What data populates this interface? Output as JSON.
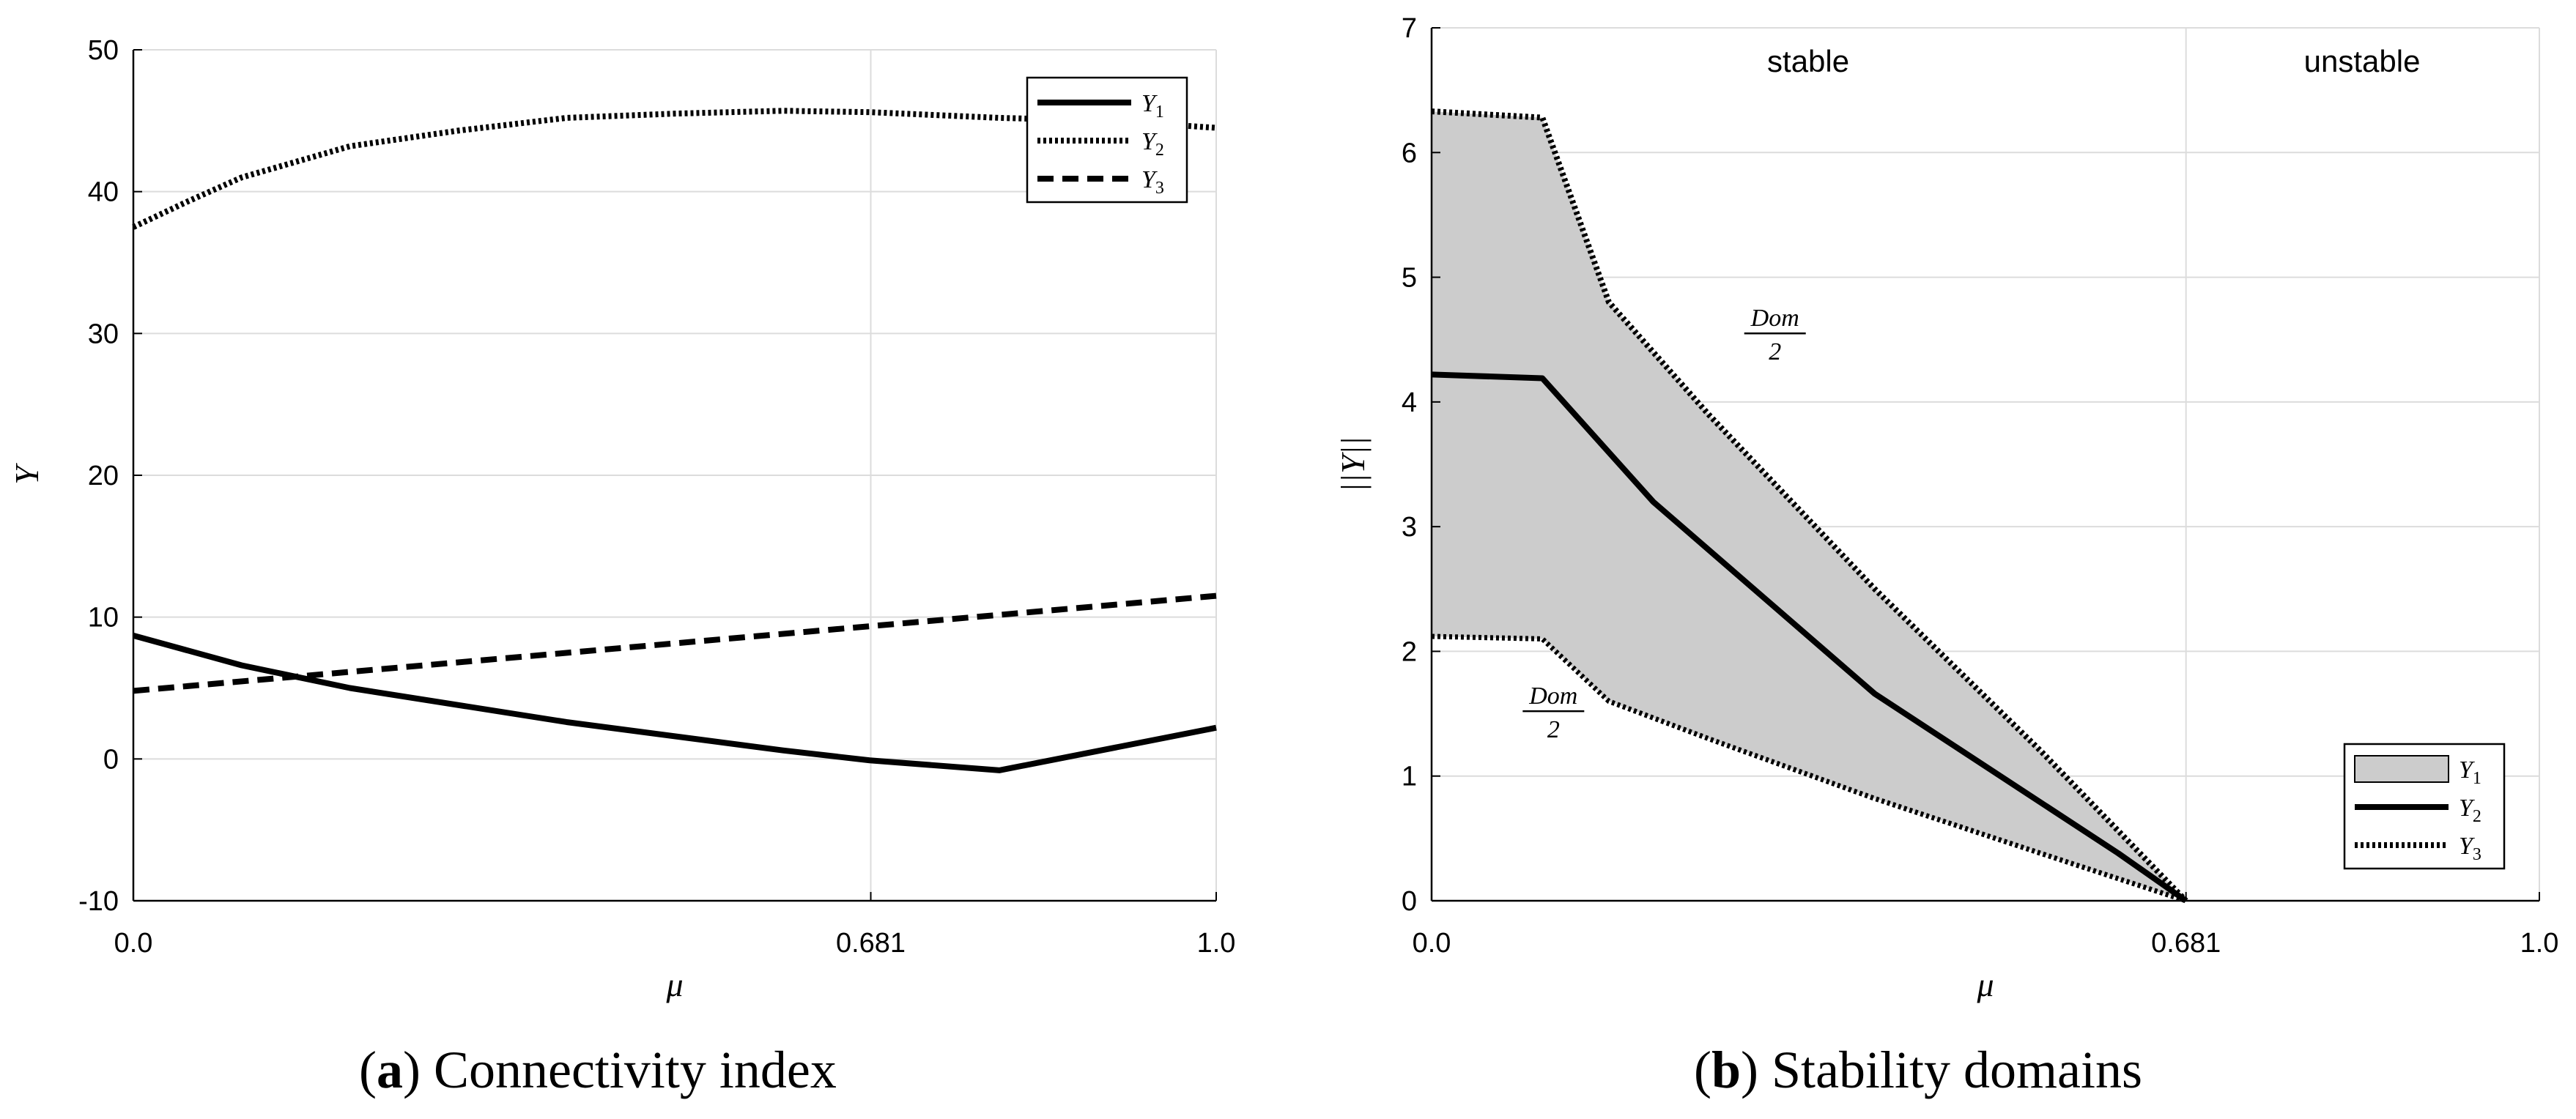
{
  "chart_data": [
    {
      "id": "a",
      "type": "line",
      "caption_letter": "a",
      "caption_text": "Connectivity index",
      "xlabel": "μ",
      "ylabel": "Y",
      "xlim": [
        0,
        1
      ],
      "ylim": [
        -10,
        50
      ],
      "xticks": [
        0,
        0.681,
        1
      ],
      "xtick_labels": [
        "0.0",
        "0.681",
        "1.0"
      ],
      "yticks": [
        -10,
        0,
        10,
        20,
        30,
        40,
        50
      ],
      "ytick_labels": [
        "-10",
        "0",
        "10",
        "20",
        "30",
        "40",
        "50"
      ],
      "grid": true,
      "legend_position": "top-right",
      "series": [
        {
          "name": "Y",
          "sub": "1",
          "style": "solid",
          "x": [
            0,
            0.1,
            0.2,
            0.4,
            0.6,
            0.68,
            0.8,
            1.0
          ],
          "y": [
            8.7,
            6.6,
            5.0,
            2.6,
            0.6,
            -0.1,
            -0.8,
            2.2
          ]
        },
        {
          "name": "Y",
          "sub": "2",
          "style": "dotted",
          "x": [
            0,
            0.05,
            0.1,
            0.2,
            0.3,
            0.4,
            0.5,
            0.6,
            0.681,
            0.8,
            0.9,
            1.0
          ],
          "y": [
            37.5,
            39.3,
            41.0,
            43.2,
            44.3,
            45.2,
            45.5,
            45.7,
            45.6,
            45.2,
            45.0,
            44.5
          ]
        },
        {
          "name": "Y",
          "sub": "3",
          "style": "dashed",
          "x": [
            0,
            1.0
          ],
          "y": [
            4.8,
            11.5
          ]
        }
      ]
    },
    {
      "id": "b",
      "type": "area",
      "caption_letter": "b",
      "caption_text": "Stability domains",
      "xlabel": "μ",
      "ylabel": "||Y||",
      "xlim": [
        0,
        1
      ],
      "ylim": [
        0,
        7
      ],
      "xticks": [
        0,
        0.681,
        1
      ],
      "xtick_labels": [
        "0.0",
        "0.681",
        "1.0"
      ],
      "yticks": [
        0,
        1,
        2,
        3,
        4,
        5,
        6,
        7
      ],
      "ytick_labels": [
        "0",
        "1",
        "2",
        "3",
        "4",
        "5",
        "6",
        "7"
      ],
      "grid": true,
      "legend_position": "bottom-right",
      "regions": [
        {
          "label": "stable",
          "x_center": 0.34
        },
        {
          "label": "unstable",
          "x_center": 0.84
        }
      ],
      "annotations": [
        {
          "numerator": "Dom",
          "denominator": "2",
          "x": 0.31,
          "y": 4.55
        },
        {
          "numerator": "Dom",
          "denominator": "2",
          "x": 0.11,
          "y": 1.52
        }
      ],
      "series": [
        {
          "name": "Y",
          "sub": "1",
          "style": "fill",
          "fill_color": "#cccccc",
          "x": [
            0,
            0.1,
            0.16,
            0.25,
            0.4,
            0.55,
            0.681
          ],
          "upper": [
            6.33,
            6.28,
            4.8,
            3.9,
            2.5,
            1.2,
            0.0
          ],
          "lower": [
            2.12,
            2.1,
            1.6,
            1.3,
            0.82,
            0.38,
            0.0
          ]
        },
        {
          "name": "Y",
          "sub": "2",
          "style": "solid",
          "x": [
            0,
            0.1,
            0.2,
            0.4,
            0.62,
            0.681
          ],
          "y": [
            4.22,
            4.19,
            3.2,
            1.66,
            0.38,
            0.0
          ]
        },
        {
          "name": "Y",
          "sub": "3",
          "style": "dotted",
          "x": [
            0,
            0.1,
            0.16,
            0.25,
            0.4,
            0.55,
            0.681
          ],
          "y": [
            6.33,
            6.28,
            4.8,
            3.9,
            2.5,
            1.2,
            0.0
          ]
        }
      ]
    }
  ]
}
